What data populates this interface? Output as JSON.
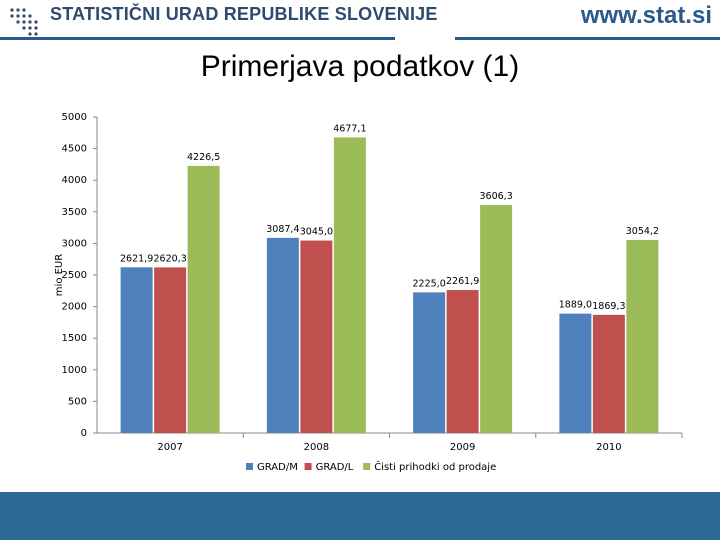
{
  "header": {
    "org_name": "STATISTIČNI URAD REPUBLIKE SLOVENIJE",
    "url": "www.stat.si",
    "logo_icon": "surs-logo-icon"
  },
  "slide": {
    "title": "Primerjava podatkov (1)"
  },
  "colors": {
    "series": [
      "#4f81bd",
      "#c0504d",
      "#9bbb59"
    ],
    "brand": "#2a5a8a",
    "footer": "#2b6b94"
  },
  "chart_data": {
    "type": "bar",
    "title": "",
    "xlabel": "",
    "ylabel": "mio EUR",
    "ylim": [
      0,
      5000
    ],
    "yticks": [
      "0",
      "500",
      "1000",
      "1500",
      "2000",
      "2500",
      "3000",
      "3500",
      "4000",
      "4500",
      "5000"
    ],
    "categories": [
      "2007",
      "2008",
      "2009",
      "2010"
    ],
    "series": [
      {
        "name": "GRAD/M",
        "values": [
          2621.9,
          3087.4,
          2225.0,
          1889.0
        ],
        "labels": [
          "2621,9",
          "3087,4",
          "2225,0",
          "1889,0"
        ]
      },
      {
        "name": "GRAD/L",
        "values": [
          2620.3,
          3045.0,
          2261.9,
          1869.3
        ],
        "labels": [
          "2620,3",
          "3045,0",
          "2261,9",
          "1869,3"
        ]
      },
      {
        "name": "Čisti prihodki od prodaje",
        "values": [
          4226.5,
          4677.1,
          3606.3,
          3054.2
        ],
        "labels": [
          "4226,5",
          "4677,1",
          "3606,3",
          "3054,2"
        ]
      }
    ],
    "grid": false,
    "legend_position": "bottom"
  }
}
